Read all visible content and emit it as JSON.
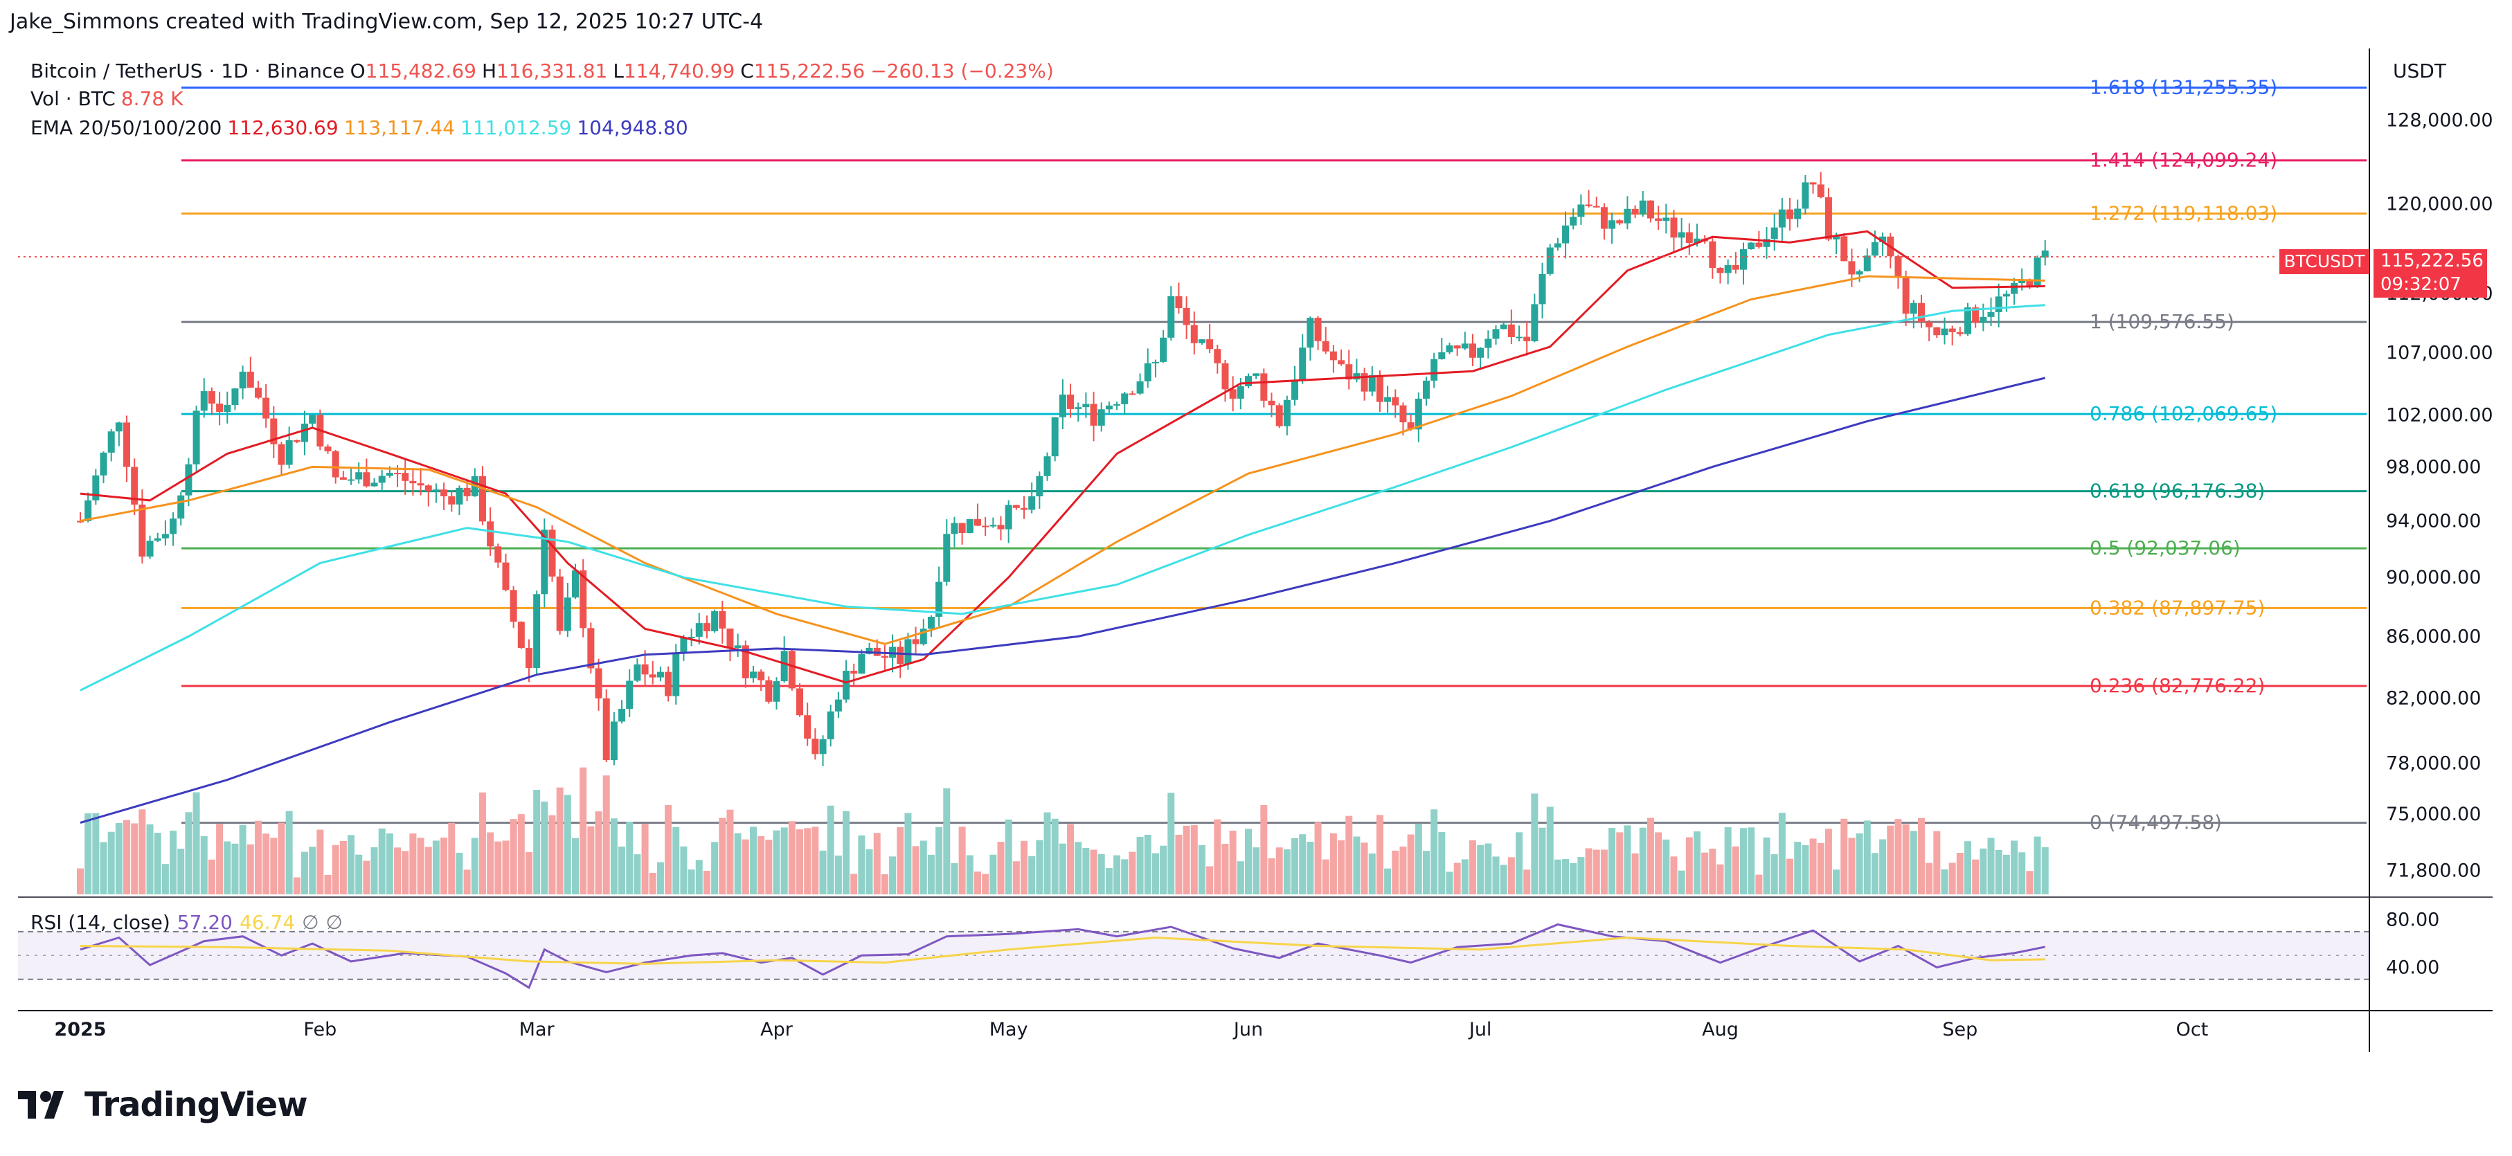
{
  "header": {
    "credit": "Jake_Simmons created with TradingView.com, Sep 12, 2025 10:27 UTC-4"
  },
  "legend": {
    "symbol": "Bitcoin / TetherUS · 1D · Binance",
    "open_label": "O",
    "open": "115,482.69",
    "high_label": "H",
    "high": "116,331.81",
    "low_label": "L",
    "low": "114,740.99",
    "close_label": "C",
    "close": "115,222.56",
    "change": "−260.13 (−0.23%)",
    "volume_label": "Vol · BTC",
    "volume": "8.78 K",
    "ema_label": "EMA 20/50/100/200",
    "ema_values": [
      "112,630.69",
      "113,117.44",
      "111,012.59",
      "104,948.80"
    ],
    "ema_colors": [
      "#e31c25",
      "#f6931e",
      "#3fe0e6",
      "#3d3bbf"
    ]
  },
  "rsi_legend": {
    "label": "RSI (14, close)",
    "value": "57.20",
    "ma_value": "46.74",
    "extra1": "∅",
    "extra2": "∅"
  },
  "price_badge": {
    "symbol": "BTCUSDT",
    "price": "115,222.56",
    "countdown": "09:32:07"
  },
  "currency": "USDT",
  "colors": {
    "up": "#26a69a",
    "down": "#ef5350",
    "up_vol": "#8fd1c8",
    "down_vol": "#f5a6a4",
    "rsi": "#7e57c2",
    "rsi_ma": "#f7d44a"
  },
  "chart_data": {
    "type": "candlestick",
    "y_axis": {
      "scale": "log",
      "ticks": [
        128000,
        120000,
        112000,
        107000,
        102000,
        98000,
        94000,
        90000,
        86000,
        82000,
        78000,
        75000,
        71800
      ],
      "tick_labels": [
        "128,000.00",
        "120,000.00",
        "112,000.00",
        "107,000.00",
        "102,000.00",
        "98,000.00",
        "94,000.00",
        "90,000.00",
        "86,000.00",
        "82,000.00",
        "78,000.00",
        "75,000.00",
        "71,800.00"
      ],
      "range": [
        70500,
        136000
      ]
    },
    "x_axis": {
      "start": "2025-01-01",
      "end": "2025-10-31",
      "tick_dates": [
        "2025-01-01",
        "2025-02-01",
        "2025-03-01",
        "2025-04-01",
        "2025-05-01",
        "2025-06-01",
        "2025-07-01",
        "2025-08-01",
        "2025-09-01",
        "2025-10-01"
      ],
      "tick_labels": [
        "2025",
        "Feb",
        "Mar",
        "Apr",
        "May",
        "Jun",
        "Jul",
        "Aug",
        "Sep",
        "Oct"
      ]
    },
    "fibonacci": [
      {
        "label": "1.618 (131,255.35)",
        "price": 131255.35,
        "color": "#2962ff"
      },
      {
        "label": "1.414 (124,099.24)",
        "price": 124099.24,
        "color": "#e91e63"
      },
      {
        "label": "1.272 (119,118.03)",
        "price": 119118.03,
        "color": "#f6a21e"
      },
      {
        "label": "1 (109,576.55)",
        "price": 109576.55,
        "color": "#787b86"
      },
      {
        "label": "0.786 (102,069.65)",
        "price": 102069.65,
        "color": "#00bcd4"
      },
      {
        "label": "0.618 (96,176.38)",
        "price": 96176.38,
        "color": "#089981"
      },
      {
        "label": "0.5 (92,037.06)",
        "price": 92037.06,
        "color": "#4caf50"
      },
      {
        "label": "0.382 (87,897.75)",
        "price": 87897.75,
        "color": "#f6a21e"
      },
      {
        "label": "0.236 (82,776.22)",
        "price": 82776.22,
        "color": "#f23645"
      },
      {
        "label": "0 (74,497.58)",
        "price": 74497.58,
        "color": "#787b86"
      }
    ],
    "series": [
      {
        "name": "BTCUSDT",
        "kind": "close_path",
        "points": [
          [
            "2025-01-01",
            94000
          ],
          [
            "2025-01-06",
            102000
          ],
          [
            "2025-01-09",
            92000
          ],
          [
            "2025-01-13",
            94000
          ],
          [
            "2025-01-17",
            104000
          ],
          [
            "2025-01-20",
            102000
          ],
          [
            "2025-01-22",
            106000
          ],
          [
            "2025-01-27",
            99000
          ],
          [
            "2025-01-31",
            102000
          ],
          [
            "2025-02-03",
            97000
          ],
          [
            "2025-02-10",
            97500
          ],
          [
            "2025-02-17",
            95800
          ],
          [
            "2025-02-21",
            96500
          ],
          [
            "2025-02-25",
            88500
          ],
          [
            "2025-02-28",
            84000
          ],
          [
            "2025-03-02",
            94000
          ],
          [
            "2025-03-04",
            86000
          ],
          [
            "2025-03-06",
            90000
          ],
          [
            "2025-03-10",
            78500
          ],
          [
            "2025-03-14",
            84000
          ],
          [
            "2025-03-18",
            82800
          ],
          [
            "2025-03-20",
            86000
          ],
          [
            "2025-03-24",
            87500
          ],
          [
            "2025-03-28",
            84000
          ],
          [
            "2025-03-31",
            82500
          ],
          [
            "2025-04-02",
            85000
          ],
          [
            "2025-04-06",
            78000
          ],
          [
            "2025-04-09",
            82500
          ],
          [
            "2025-04-12",
            85000
          ],
          [
            "2025-04-17",
            84500
          ],
          [
            "2025-04-21",
            87500
          ],
          [
            "2025-04-23",
            93500
          ],
          [
            "2025-04-27",
            94000
          ],
          [
            "2025-04-30",
            94200
          ],
          [
            "2025-05-04",
            95000
          ],
          [
            "2025-05-08",
            103000
          ],
          [
            "2025-05-12",
            102000
          ],
          [
            "2025-05-15",
            103500
          ],
          [
            "2025-05-20",
            106000
          ],
          [
            "2025-05-22",
            111500
          ],
          [
            "2025-05-25",
            108000
          ],
          [
            "2025-05-30",
            104000
          ],
          [
            "2025-06-02",
            105000
          ],
          [
            "2025-06-05",
            101500
          ],
          [
            "2025-06-09",
            109000
          ],
          [
            "2025-06-13",
            105500
          ],
          [
            "2025-06-17",
            104500
          ],
          [
            "2025-06-22",
            100500
          ],
          [
            "2025-06-25",
            106500
          ],
          [
            "2025-06-30",
            107000
          ],
          [
            "2025-07-03",
            109500
          ],
          [
            "2025-07-07",
            108000
          ],
          [
            "2025-07-10",
            116000
          ],
          [
            "2025-07-14",
            120000
          ],
          [
            "2025-07-18",
            118000
          ],
          [
            "2025-07-22",
            119500
          ],
          [
            "2025-07-26",
            117500
          ],
          [
            "2025-07-30",
            117500
          ],
          [
            "2025-08-01",
            113000
          ],
          [
            "2025-08-03",
            114000
          ],
          [
            "2025-08-07",
            117500
          ],
          [
            "2025-08-10",
            119500
          ],
          [
            "2025-08-13",
            122000
          ],
          [
            "2025-08-15",
            117500
          ],
          [
            "2025-08-19",
            113000
          ],
          [
            "2025-08-22",
            117000
          ],
          [
            "2025-08-25",
            111000
          ],
          [
            "2025-08-29",
            108500
          ],
          [
            "2025-09-01",
            109500
          ],
          [
            "2025-09-05",
            111000
          ],
          [
            "2025-09-08",
            112000
          ],
          [
            "2025-09-10",
            113500
          ],
          [
            "2025-09-12",
            115222.56
          ]
        ]
      },
      {
        "name": "EMA 20",
        "color": "#e31c25",
        "points": [
          [
            "2025-01-01",
            96000
          ],
          [
            "2025-01-10",
            95500
          ],
          [
            "2025-01-20",
            99000
          ],
          [
            "2025-01-31",
            101000
          ],
          [
            "2025-02-10",
            99000
          ],
          [
            "2025-02-25",
            96000
          ],
          [
            "2025-03-05",
            91000
          ],
          [
            "2025-03-15",
            86500
          ],
          [
            "2025-03-28",
            85000
          ],
          [
            "2025-04-10",
            83000
          ],
          [
            "2025-04-20",
            84500
          ],
          [
            "2025-05-01",
            90000
          ],
          [
            "2025-05-15",
            99000
          ],
          [
            "2025-05-31",
            104500
          ],
          [
            "2025-06-15",
            105000
          ],
          [
            "2025-06-30",
            105500
          ],
          [
            "2025-07-10",
            107500
          ],
          [
            "2025-07-20",
            114000
          ],
          [
            "2025-07-31",
            117000
          ],
          [
            "2025-08-10",
            116500
          ],
          [
            "2025-08-20",
            117500
          ],
          [
            "2025-08-31",
            112500
          ],
          [
            "2025-09-12",
            112630.69
          ]
        ]
      },
      {
        "name": "EMA 50",
        "color": "#f6931e",
        "points": [
          [
            "2025-01-01",
            94000
          ],
          [
            "2025-01-15",
            95500
          ],
          [
            "2025-01-31",
            98000
          ],
          [
            "2025-02-15",
            97800
          ],
          [
            "2025-03-01",
            95000
          ],
          [
            "2025-03-15",
            91000
          ],
          [
            "2025-04-01",
            87500
          ],
          [
            "2025-04-15",
            85500
          ],
          [
            "2025-05-01",
            88000
          ],
          [
            "2025-05-15",
            92500
          ],
          [
            "2025-06-01",
            97500
          ],
          [
            "2025-06-20",
            100500
          ],
          [
            "2025-07-05",
            103500
          ],
          [
            "2025-07-20",
            107500
          ],
          [
            "2025-08-05",
            111500
          ],
          [
            "2025-08-20",
            113500
          ],
          [
            "2025-09-12",
            113117.44
          ]
        ]
      },
      {
        "name": "EMA 100",
        "color": "#3fe0e6",
        "points": [
          [
            "2025-01-01",
            82500
          ],
          [
            "2025-01-15",
            86000
          ],
          [
            "2025-02-01",
            91000
          ],
          [
            "2025-02-20",
            93500
          ],
          [
            "2025-03-05",
            92500
          ],
          [
            "2025-03-20",
            90000
          ],
          [
            "2025-04-10",
            88000
          ],
          [
            "2025-04-25",
            87500
          ],
          [
            "2025-05-15",
            89500
          ],
          [
            "2025-06-01",
            93000
          ],
          [
            "2025-06-20",
            96500
          ],
          [
            "2025-07-05",
            99500
          ],
          [
            "2025-07-25",
            104000
          ],
          [
            "2025-08-15",
            108500
          ],
          [
            "2025-08-31",
            110500
          ],
          [
            "2025-09-12",
            111012.59
          ]
        ]
      },
      {
        "name": "EMA 200",
        "color": "#3d3bbf",
        "points": [
          [
            "2025-01-01",
            74500
          ],
          [
            "2025-01-20",
            77000
          ],
          [
            "2025-02-10",
            80500
          ],
          [
            "2025-03-01",
            83500
          ],
          [
            "2025-03-15",
            84800
          ],
          [
            "2025-04-01",
            85200
          ],
          [
            "2025-04-20",
            84800
          ],
          [
            "2025-05-10",
            86000
          ],
          [
            "2025-06-01",
            88500
          ],
          [
            "2025-06-20",
            91000
          ],
          [
            "2025-07-10",
            94000
          ],
          [
            "2025-07-31",
            98000
          ],
          [
            "2025-08-20",
            101500
          ],
          [
            "2025-09-12",
            104948.8
          ]
        ]
      }
    ],
    "volume_axis_max": 60,
    "rsi": {
      "levels": [
        80,
        40
      ],
      "level_labels": [
        "80.00",
        "40.00"
      ],
      "bands": [
        70,
        30
      ],
      "range": [
        20,
        85
      ],
      "points": [
        [
          "2025-01-01",
          55
        ],
        [
          "2025-01-06",
          65
        ],
        [
          "2025-01-10",
          42
        ],
        [
          "2025-01-17",
          62
        ],
        [
          "2025-01-22",
          66
        ],
        [
          "2025-01-27",
          50
        ],
        [
          "2025-01-31",
          60
        ],
        [
          "2025-02-05",
          45
        ],
        [
          "2025-02-12",
          52
        ],
        [
          "2025-02-20",
          49
        ],
        [
          "2025-02-25",
          35
        ],
        [
          "2025-02-28",
          23
        ],
        [
          "2025-03-02",
          55
        ],
        [
          "2025-03-05",
          45
        ],
        [
          "2025-03-10",
          36
        ],
        [
          "2025-03-15",
          44
        ],
        [
          "2025-03-21",
          50
        ],
        [
          "2025-03-25",
          52
        ],
        [
          "2025-03-30",
          44
        ],
        [
          "2025-04-03",
          48
        ],
        [
          "2025-04-07",
          34
        ],
        [
          "2025-04-12",
          50
        ],
        [
          "2025-04-18",
          51
        ],
        [
          "2025-04-23",
          66
        ],
        [
          "2025-05-01",
          68
        ],
        [
          "2025-05-10",
          72
        ],
        [
          "2025-05-15",
          66
        ],
        [
          "2025-05-22",
          74
        ],
        [
          "2025-05-30",
          56
        ],
        [
          "2025-06-05",
          48
        ],
        [
          "2025-06-10",
          60
        ],
        [
          "2025-06-18",
          50
        ],
        [
          "2025-06-22",
          44
        ],
        [
          "2025-06-28",
          57
        ],
        [
          "2025-07-05",
          60
        ],
        [
          "2025-07-11",
          76
        ],
        [
          "2025-07-18",
          66
        ],
        [
          "2025-07-25",
          62
        ],
        [
          "2025-08-01",
          44
        ],
        [
          "2025-08-06",
          56
        ],
        [
          "2025-08-13",
          71
        ],
        [
          "2025-08-19",
          45
        ],
        [
          "2025-08-24",
          58
        ],
        [
          "2025-08-29",
          40
        ],
        [
          "2025-09-03",
          48
        ],
        [
          "2025-09-08",
          52
        ],
        [
          "2025-09-12",
          57.2
        ]
      ],
      "ma_points": [
        [
          "2025-01-01",
          58
        ],
        [
          "2025-01-20",
          57
        ],
        [
          "2025-02-10",
          54
        ],
        [
          "2025-02-28",
          45
        ],
        [
          "2025-03-15",
          43
        ],
        [
          "2025-04-01",
          46
        ],
        [
          "2025-04-15",
          44
        ],
        [
          "2025-05-01",
          55
        ],
        [
          "2025-05-20",
          65
        ],
        [
          "2025-06-10",
          58
        ],
        [
          "2025-07-01",
          55
        ],
        [
          "2025-07-20",
          65
        ],
        [
          "2025-08-10",
          58
        ],
        [
          "2025-08-25",
          55
        ],
        [
          "2025-09-05",
          46
        ],
        [
          "2025-09-12",
          46.74
        ]
      ]
    }
  }
}
